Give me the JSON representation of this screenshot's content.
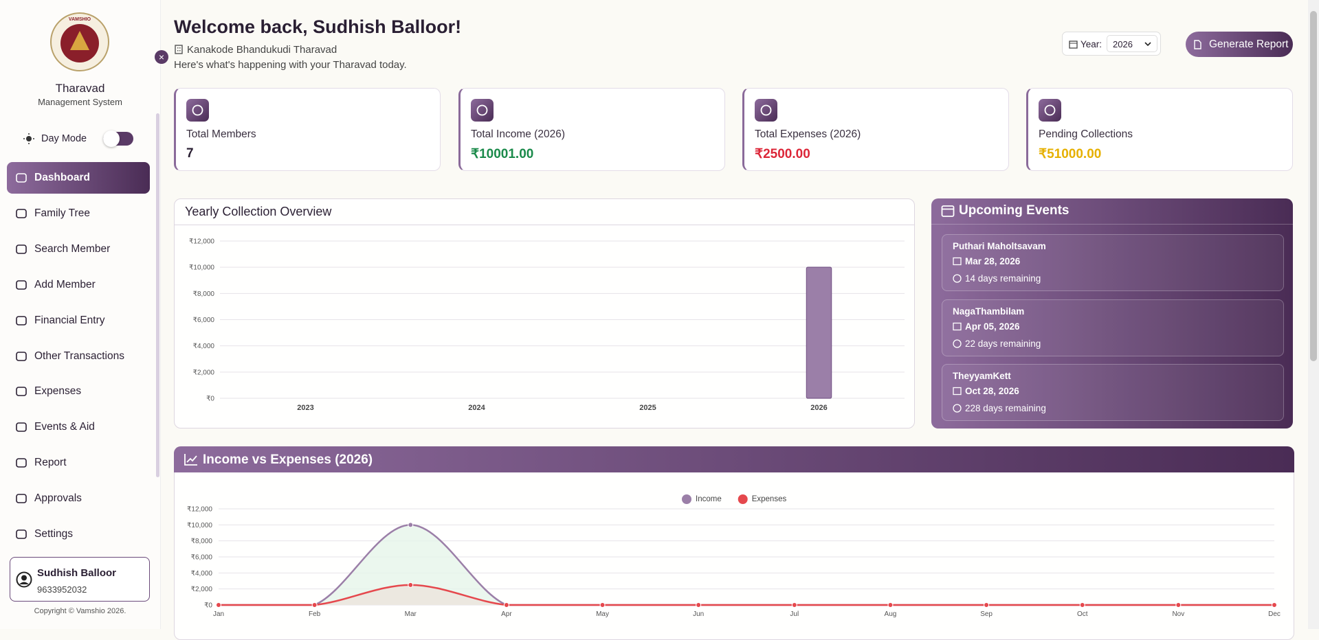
{
  "sidebar": {
    "logo_text": "VAMSHIO",
    "title": "Tharavad",
    "subtitle": "Management System",
    "mode": "Day Mode",
    "nav": [
      "Dashboard",
      "Family Tree",
      "Search Member",
      "Add Member",
      "Financial Entry",
      "Other Transactions",
      "Expenses",
      "Events & Aid",
      "Report",
      "Approvals",
      "Settings"
    ],
    "user": {
      "name": "Sudhish Balloor",
      "phone": "9633952032"
    },
    "copyright": "Copyright © Vamshio 2026."
  },
  "header": {
    "greeting": "Welcome back, Sudhish Balloor!",
    "tharavad": "Kanakode Bhandukudi Tharavad",
    "tagline": "Here's what's happening with your Tharavad today.",
    "year_label": "Year:",
    "year": "2026",
    "button": "Generate Report"
  },
  "cards": [
    {
      "label": "Total Members",
      "value": "7",
      "color": "#2a1f33"
    },
    {
      "label": "Total Income (2026)",
      "value": "₹10001.00",
      "color": "#1a8a4a"
    },
    {
      "label": "Total Expenses (2026)",
      "value": "₹2500.00",
      "color": "#dc2638"
    },
    {
      "label": "Pending Collections",
      "value": "₹51000.00",
      "color": "#e6b000"
    }
  ],
  "events": {
    "title": "Upcoming Events",
    "items": [
      {
        "name": "Puthari Maholtsavam",
        "date": "Mar 28, 2026",
        "remaining": "14 days remaining"
      },
      {
        "name": "NagaThambilam",
        "date": "Apr 05, 2026",
        "remaining": "22 days remaining"
      },
      {
        "name": "TheyyamKett",
        "date": "Oct 28, 2026",
        "remaining": "228 days remaining"
      }
    ]
  },
  "chart_data": [
    {
      "type": "bar",
      "title": "Yearly Collection Overview",
      "categories": [
        "2023",
        "2024",
        "2025",
        "2026"
      ],
      "values": [
        0,
        0,
        0,
        10001
      ],
      "color": "#9b7fa8",
      "ylim": [
        0,
        12000
      ],
      "yticks": [
        {
          "value": 0,
          "label": "₹0"
        },
        {
          "value": 2000,
          "label": "₹2,000"
        },
        {
          "value": 4000,
          "label": "₹4,000"
        },
        {
          "value": 6000,
          "label": "₹6,000"
        },
        {
          "value": 8000,
          "label": "₹8,000"
        },
        {
          "value": 10000,
          "label": "₹10,000"
        },
        {
          "value": 12000,
          "label": "₹12,000"
        }
      ],
      "grid": true
    },
    {
      "type": "line",
      "title": "Income vs Expenses (2026)",
      "categories": [
        "Jan",
        "Feb",
        "Mar",
        "Apr",
        "May",
        "Jun",
        "Jul",
        "Aug",
        "Sep",
        "Oct",
        "Nov",
        "Dec"
      ],
      "series": [
        {
          "name": "Income",
          "color": "#9b7fa8",
          "fill": "#e6f5ea",
          "values": [
            0,
            0,
            10001,
            0,
            0,
            0,
            0,
            0,
            0,
            0,
            0,
            0
          ]
        },
        {
          "name": "Expenses",
          "color": "#e5484d",
          "fill": "#ece4dc",
          "values": [
            0,
            0,
            2500,
            0,
            0,
            0,
            0,
            0,
            0,
            0,
            0,
            0
          ]
        }
      ],
      "ylim": [
        0,
        12000
      ],
      "yticks": [
        {
          "value": 0,
          "label": "₹0"
        },
        {
          "value": 2000,
          "label": "₹2,000"
        },
        {
          "value": 4000,
          "label": "₹4,000"
        },
        {
          "value": 6000,
          "label": "₹6,000"
        },
        {
          "value": 8000,
          "label": "₹8,000"
        },
        {
          "value": 10000,
          "label": "₹10,000"
        },
        {
          "value": 12000,
          "label": "₹12,000"
        }
      ],
      "grid": true,
      "legend": "top"
    }
  ]
}
